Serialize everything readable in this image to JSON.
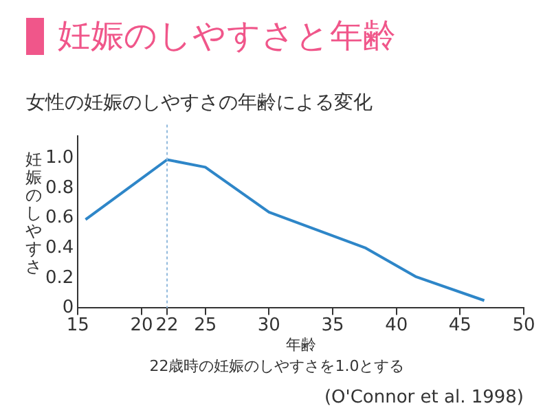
{
  "chart_data": {
    "type": "line",
    "title": "妊娠のしやすさと年齢",
    "subtitle": "女性の妊娠のしやすさの年齢による変化",
    "xlabel": "年齢",
    "ylabel": "妊娠のしやすさ",
    "x": [
      15.6,
      22,
      25,
      30,
      37.6,
      41.5,
      46.9
    ],
    "series": [
      {
        "color": "#2e86c8",
        "values": [
          0.59,
          0.99,
          0.94,
          0.64,
          0.4,
          0.21,
          0.05
        ]
      }
    ],
    "xlim": [
      15,
      50
    ],
    "xticks": [
      15,
      20,
      22,
      25,
      30,
      35,
      40,
      45,
      50
    ],
    "ylim": [
      0,
      1.15
    ],
    "yticks": [
      0,
      {
        "value": 0.2,
        "label": "0.2"
      },
      {
        "value": 0.4,
        "label": "0.4"
      },
      {
        "value": 0.6,
        "label": "0.6"
      },
      {
        "value": 0.8,
        "label": "0.8"
      },
      {
        "value": 1,
        "label": "1.0"
      }
    ],
    "ref_lines": [
      {
        "axis": "x",
        "value": 22,
        "color": "#8fb8dc",
        "line_style": "dotted"
      }
    ],
    "grid": false,
    "legend": false,
    "marker": "none",
    "line_style": "solid",
    "annotations": [
      "22歳時の妊娠のしやすさを1.0とする",
      "(O'Connor et al. 1998)"
    ]
  }
}
